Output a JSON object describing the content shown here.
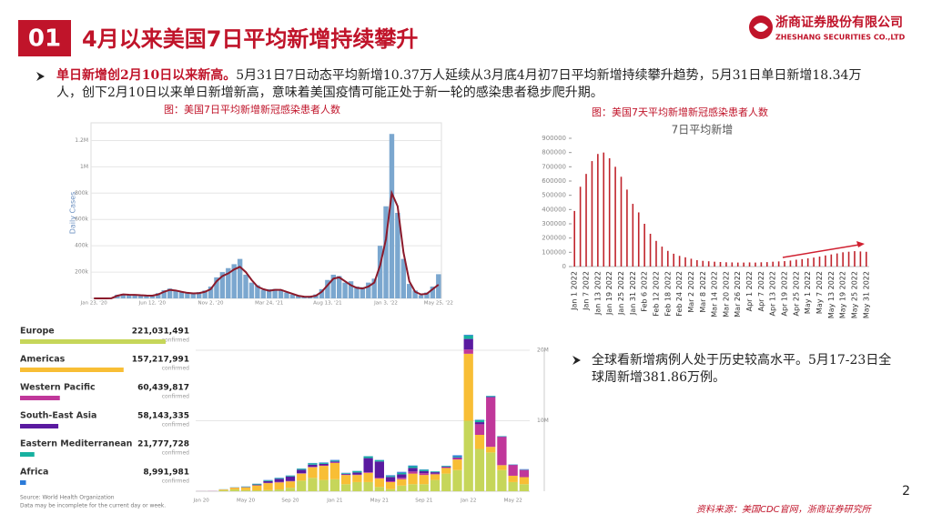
{
  "header": {
    "number": "01",
    "title": "4月以来美国7日平均新增持续攀升",
    "company": "浙商证券股份有限公司",
    "company_en": "ZHESHANG SECURITIES CO.,LTD"
  },
  "bullets": [
    {
      "bold": "单日新增创2月10日以来新高。",
      "text": "5月31日7日动态平均新增10.37万人延续从3月底4月初7日平均新增持续攀升趋势，5月31日单日新增18.34万人，创下2月10日以来单日新增新高，意味着美国疫情可能正处于新一轮的感染患者稳步爬升期。"
    },
    {
      "text": "全球看新增病例人处于历史较高水平。5月17-23日全球周新增381.86万例。"
    }
  ],
  "footer": {
    "source": "资料来源：美国CDC官网，浙商证券研究所",
    "page": "2"
  },
  "chart_data": [
    {
      "type": "bar_line",
      "caption": "图：美国7日平均新增新冠感染患者人数",
      "y_label": "Daily Cases",
      "categories": [
        "Jan 23, '20",
        null,
        null,
        null,
        null,
        null,
        null,
        null,
        null,
        null,
        "Jun 12, '20",
        null,
        null,
        null,
        null,
        null,
        null,
        null,
        null,
        null,
        "Nov 2, '20",
        null,
        null,
        null,
        null,
        null,
        null,
        null,
        null,
        null,
        "Mar 24, '21",
        null,
        null,
        null,
        null,
        null,
        null,
        null,
        null,
        null,
        "Aug 13, '21",
        null,
        null,
        null,
        null,
        null,
        null,
        null,
        null,
        null,
        "Jan 3, '22",
        null,
        null,
        null,
        null,
        null,
        null,
        null,
        null,
        "May 25, '22"
      ],
      "series": [
        {
          "kind": "bar",
          "color": "#7ba7cf",
          "values": [
            0,
            0,
            0,
            2000,
            28000,
            35000,
            30000,
            25000,
            28000,
            20000,
            25000,
            40000,
            62000,
            75000,
            55000,
            48000,
            45000,
            35000,
            48000,
            60000,
            90000,
            160000,
            200000,
            230000,
            260000,
            300000,
            180000,
            120000,
            100000,
            65000,
            70000,
            72000,
            60000,
            45000,
            30000,
            22000,
            10000,
            18000,
            30000,
            70000,
            140000,
            180000,
            170000,
            120000,
            130000,
            90000,
            85000,
            120000,
            150000,
            400000,
            700000,
            1250000,
            650000,
            300000,
            110000,
            60000,
            25000,
            45000,
            90000,
            184000
          ]
        },
        {
          "kind": "line",
          "color": "#8b1a2b",
          "values": [
            0,
            0,
            0,
            1000,
            20000,
            30000,
            28000,
            27000,
            24000,
            22000,
            21000,
            30000,
            50000,
            65000,
            60000,
            50000,
            42000,
            38000,
            40000,
            50000,
            70000,
            130000,
            170000,
            190000,
            220000,
            240000,
            200000,
            140000,
            90000,
            70000,
            58000,
            65000,
            65000,
            50000,
            35000,
            20000,
            13000,
            12000,
            20000,
            50000,
            100000,
            150000,
            160000,
            130000,
            100000,
            80000,
            75000,
            90000,
            120000,
            250000,
            450000,
            800000,
            700000,
            350000,
            130000,
            50000,
            30000,
            35000,
            70000,
            104000
          ]
        }
      ],
      "ylim": [
        0,
        1300000
      ],
      "yticks": [
        {
          "value": 200000,
          "label": "200k"
        },
        {
          "value": 400000,
          "label": "400k"
        },
        {
          "value": 600000,
          "label": "600k"
        },
        {
          "value": 800000,
          "label": "800k"
        },
        {
          "value": 1000000,
          "label": "1M"
        },
        {
          "value": 1200000,
          "label": "1.2M"
        }
      ],
      "grid": true
    },
    {
      "type": "bar",
      "caption": "图：美国7天平均新增新冠感染患者人数",
      "title": "7日平均新增",
      "color": "#c0242c",
      "categories": [
        "Jan 1 2022",
        null,
        "Jan 7 2022",
        null,
        "Jan 13 2022",
        null,
        "Jan 19 2022",
        null,
        "Jan 25 2022",
        null,
        "Jan 31 2022",
        null,
        "Feb 6 2022",
        null,
        "Feb 12 2022",
        null,
        "Feb 18 2022",
        null,
        "Feb 24 2022",
        null,
        "Mar 2 2022",
        null,
        "Mar 8 2022",
        null,
        "Mar 14 2022",
        null,
        "Mar 20 2022",
        null,
        "Mar 26 2022",
        null,
        "Apr 1 2022",
        null,
        "Apr 7 2022",
        null,
        "Apr 13 2022",
        null,
        "Apr 19 2022",
        null,
        "Apr 25 2022",
        null,
        "May 1 2022",
        null,
        "May 7 2022",
        null,
        "May 13 2022",
        null,
        "May 19 2022",
        null,
        "May 25 2022",
        null,
        "May 31 2022"
      ],
      "values": [
        390000,
        560000,
        650000,
        740000,
        790000,
        800000,
        760000,
        700000,
        630000,
        540000,
        440000,
        380000,
        300000,
        230000,
        180000,
        140000,
        110000,
        90000,
        75000,
        65000,
        55000,
        45000,
        40000,
        37000,
        34000,
        32000,
        30000,
        29000,
        28000,
        28000,
        29000,
        28000,
        30000,
        31000,
        34000,
        36000,
        38000,
        42000,
        48000,
        52000,
        58000,
        63000,
        70000,
        78000,
        85000,
        92000,
        100000,
        104000,
        108000,
        106000,
        103700
      ],
      "ylim": [
        0,
        900000
      ],
      "yticks": [
        0,
        100000,
        200000,
        300000,
        400000,
        500000,
        600000,
        700000,
        800000,
        900000
      ],
      "grid": false
    },
    {
      "type": "hbar",
      "categories": [
        "Europe",
        "Americas",
        "Western Pacific",
        "South-East Asia",
        "Eastern Mediterranean",
        "Africa"
      ],
      "values": [
        221031491,
        157217991,
        60439817,
        58143335,
        21777728,
        8991981
      ],
      "value_labels": [
        "221,031,491",
        "157,217,991",
        "60,439,817",
        "58,143,335",
        "21,777,728",
        "8,991,981"
      ],
      "unit_label": "confirmed",
      "colors": [
        "#c6d65a",
        "#f8be35",
        "#c0379a",
        "#5a1aa0",
        "#17b1a0",
        "#2b7ad8"
      ],
      "source": "Source: World Health Organization",
      "note": "Data may be incomplete for the current day or week."
    },
    {
      "type": "stacked_bar",
      "categories": [
        "Jan 20",
        null,
        null,
        null,
        "May 20",
        null,
        null,
        null,
        "Sep 20",
        null,
        null,
        null,
        "Jan 21",
        null,
        null,
        null,
        "May 21",
        null,
        null,
        null,
        "Sep 21",
        null,
        null,
        null,
        "Jan 22",
        null,
        null,
        null,
        "May 22",
        null
      ],
      "series": [
        {
          "color": "#c6d65a",
          "values": [
            0,
            0,
            150000,
            250000,
            150000,
            130000,
            150000,
            250000,
            500000,
            1500000,
            1900000,
            1600000,
            1700000,
            1000000,
            1300000,
            1300000,
            600000,
            300000,
            800000,
            1000000,
            1000000,
            1600000,
            2500000,
            3000000,
            10000000,
            6000000,
            5500000,
            3000000,
            1300000,
            1000000
          ]
        },
        {
          "color": "#f8be35",
          "values": [
            0,
            0,
            100000,
            250000,
            400000,
            700000,
            1000000,
            1000000,
            900000,
            1000000,
            1500000,
            2000000,
            2300000,
            1300000,
            1000000,
            1300000,
            1200000,
            1000000,
            900000,
            1500000,
            1300000,
            800000,
            800000,
            1500000,
            9500000,
            2000000,
            800000,
            700000,
            900000,
            1000000
          ]
        },
        {
          "color": "#c0379a",
          "values": [
            10000,
            20000,
            10000,
            20000,
            20000,
            20000,
            40000,
            60000,
            50000,
            50000,
            70000,
            80000,
            100000,
            60000,
            60000,
            100000,
            120000,
            120000,
            200000,
            300000,
            250000,
            100000,
            100000,
            200000,
            600000,
            1500000,
            7000000,
            4000000,
            1500000,
            1000000
          ]
        },
        {
          "color": "#5a1aa0",
          "values": [
            0,
            0,
            0,
            10000,
            40000,
            100000,
            250000,
            450000,
            650000,
            500000,
            300000,
            200000,
            120000,
            100000,
            300000,
            2000000,
            2300000,
            600000,
            500000,
            500000,
            300000,
            200000,
            100000,
            100000,
            1500000,
            300000,
            100000,
            50000,
            50000,
            50000
          ]
        },
        {
          "color": "#17b1a0",
          "values": [
            0,
            0,
            20000,
            30000,
            60000,
            100000,
            100000,
            100000,
            120000,
            150000,
            200000,
            150000,
            120000,
            100000,
            200000,
            250000,
            200000,
            150000,
            200000,
            250000,
            200000,
            100000,
            100000,
            100000,
            500000,
            300000,
            100000,
            50000,
            30000,
            30000
          ]
        },
        {
          "color": "#2b7ad8",
          "values": [
            0,
            0,
            0,
            0,
            10000,
            20000,
            50000,
            50000,
            30000,
            30000,
            40000,
            60000,
            100000,
            50000,
            30000,
            30000,
            30000,
            100000,
            150000,
            100000,
            50000,
            20000,
            20000,
            200000,
            100000,
            50000,
            30000,
            20000,
            30000,
            50000
          ]
        }
      ],
      "ylim": [
        0,
        24000000
      ],
      "yticks": [
        {
          "value": 10000000,
          "label": "10M"
        },
        {
          "value": 20000000,
          "label": "20M"
        }
      ],
      "grid": true
    }
  ]
}
